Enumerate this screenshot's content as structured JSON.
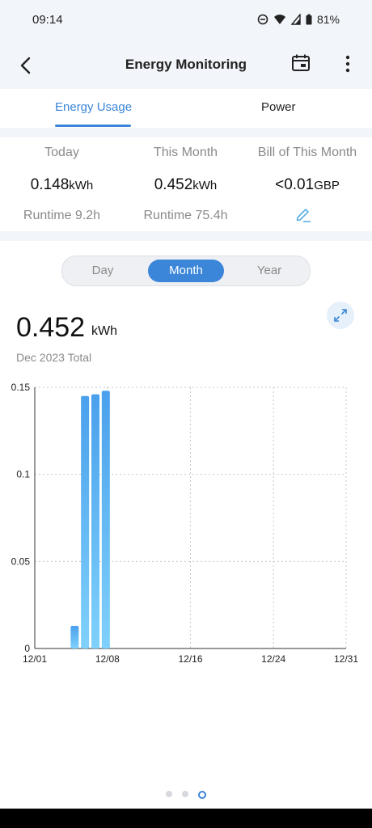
{
  "status": {
    "time": "09:14",
    "battery": "81%"
  },
  "header": {
    "title": "Energy Monitoring"
  },
  "tabs": [
    {
      "label": "Energy Usage"
    },
    {
      "label": "Power"
    }
  ],
  "stats": {
    "today": {
      "label": "Today",
      "value": "0.148",
      "unit": "kWh",
      "sub": "Runtime 9.2h"
    },
    "month": {
      "label": "This Month",
      "value": "0.452",
      "unit": "kWh",
      "sub": "Runtime 75.4h"
    },
    "bill": {
      "label": "Bill of This Month",
      "value": "<0.01",
      "unit": "GBP"
    }
  },
  "segments": {
    "day": "Day",
    "month": "Month",
    "year": "Year"
  },
  "total": {
    "value": "0.452",
    "unit": "kWh",
    "label": "Dec 2023 Total"
  },
  "icons": {
    "back": "back-arrow-icon",
    "calendar": "calendar-icon",
    "more": "more-vertical-icon",
    "edit": "pencil-icon",
    "expand": "expand-icon"
  },
  "colors": {
    "accent": "#3b86d9",
    "bar_top": "#4aa0ec",
    "bar_bottom": "#7fd1fb"
  },
  "chart_data": {
    "type": "bar",
    "x_tick_labels": [
      "12/01",
      "12/08",
      "12/16",
      "12/24",
      "12/31"
    ],
    "y_tick_labels": [
      "0",
      "0.05",
      "0.1",
      "0.15"
    ],
    "ylim": [
      0,
      0.15
    ],
    "grid": true,
    "categories": [
      "12/05",
      "12/06",
      "12/07",
      "12/08"
    ],
    "values": [
      0.013,
      0.145,
      0.146,
      0.148
    ]
  },
  "pager": {
    "count": 3,
    "active": 2
  }
}
